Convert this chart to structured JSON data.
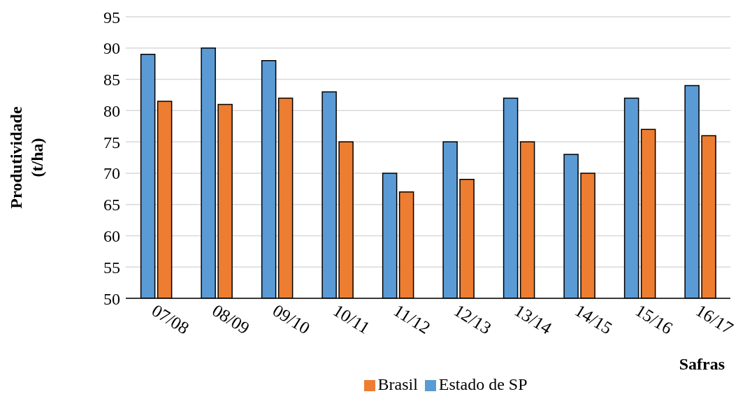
{
  "chart_data": {
    "type": "bar",
    "xlabel": "Safras",
    "ylabel": "Produtividade (t/ha)",
    "categories": [
      "07/08",
      "08/09",
      "09/10",
      "10/11",
      "11/12",
      "12/13",
      "13/14",
      "14/15",
      "15/16",
      "16/17"
    ],
    "series": [
      {
        "name": "Estado de SP",
        "color": "#5b9bd5",
        "values": [
          89,
          90,
          88,
          83,
          70,
          75,
          82,
          73,
          82,
          84
        ]
      },
      {
        "name": "Brasil",
        "color": "#ed7d31",
        "values": [
          81.5,
          81,
          82,
          75,
          67,
          69,
          75,
          70,
          77,
          76
        ]
      }
    ],
    "ylim": [
      50,
      95
    ],
    "yticks": [
      50,
      55,
      60,
      65,
      70,
      75,
      80,
      85,
      90,
      95
    ],
    "grid": "y",
    "legend": "bottom"
  }
}
